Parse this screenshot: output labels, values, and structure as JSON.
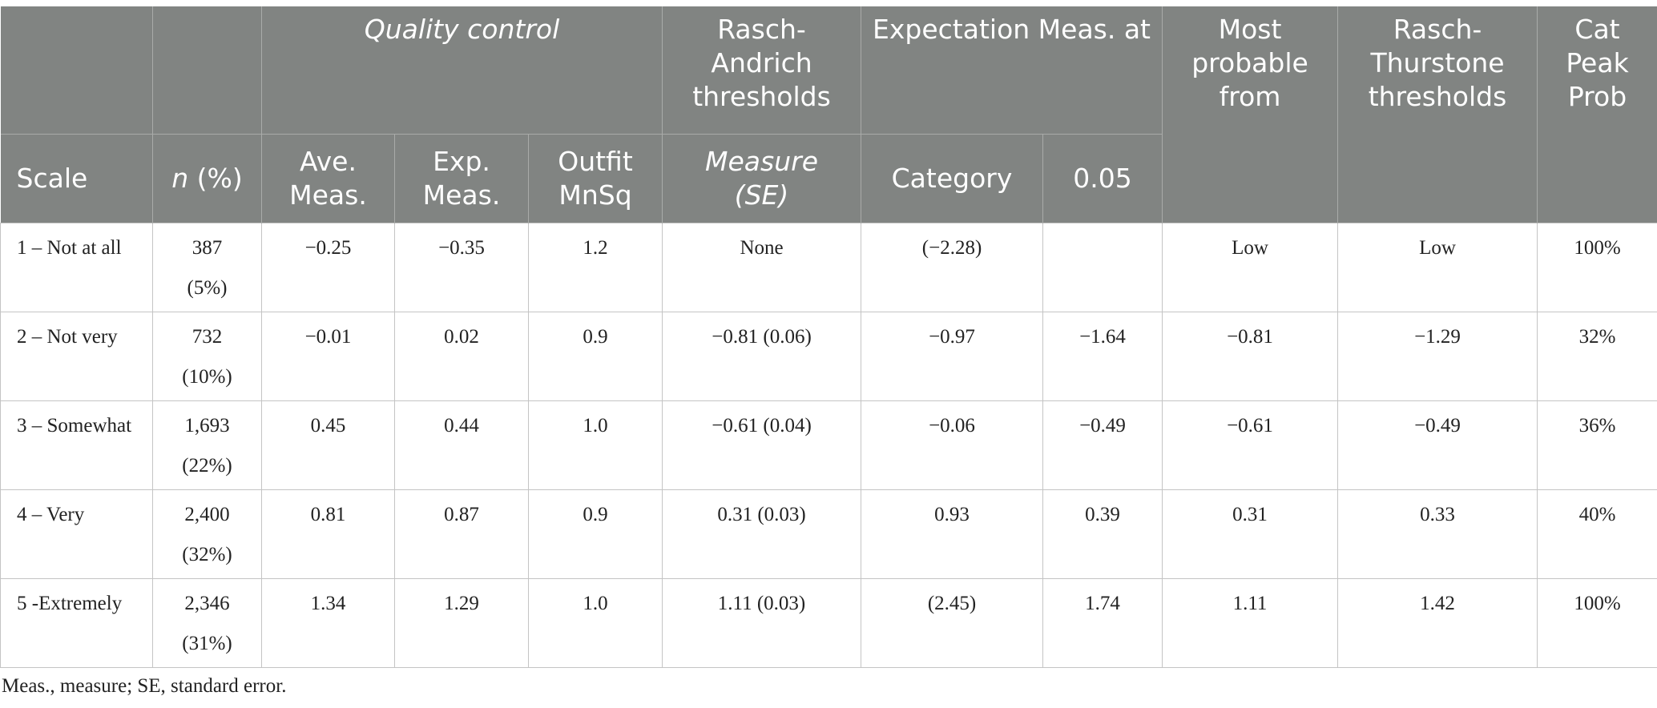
{
  "header": {
    "quality_control": "Quality control",
    "rasch_andrich": "Rasch-Andrich thresholds",
    "expectation": "Expectation Meas. at",
    "most_probable": "Most probable from",
    "rasch_thurstone": "Rasch-Thurstone thresholds",
    "cat_peak": "Cat Peak Prob",
    "scale": "Scale",
    "n_italic": "n",
    "n_pct": " (%)",
    "ave_meas": "Ave. Meas.",
    "exp_meas": "Exp. Meas.",
    "outfit": "Outfit MnSq",
    "measure": "Measure",
    "se": "(SE)",
    "category": "Category",
    "p05": "0.05"
  },
  "rows": [
    {
      "scale": "1 – Not at all",
      "n": "387",
      "pct": "(5%)",
      "ave": "−0.25",
      "exp": "−0.35",
      "outfit": "1.2",
      "measure": "None",
      "category": "(−2.28)",
      "p05": "",
      "most": "Low",
      "thurstone": "Low",
      "peak": "100%"
    },
    {
      "scale": "2 – Not very",
      "n": "732",
      "pct": "(10%)",
      "ave": "−0.01",
      "exp": "0.02",
      "outfit": "0.9",
      "measure": "−0.81 (0.06)",
      "category": "−0.97",
      "p05": "−1.64",
      "most": "−0.81",
      "thurstone": "−1.29",
      "peak": "32%"
    },
    {
      "scale": "3 – Somewhat",
      "n": "1,693",
      "pct": "(22%)",
      "ave": "0.45",
      "exp": "0.44",
      "outfit": "1.0",
      "measure": "−0.61 (0.04)",
      "category": "−0.06",
      "p05": "−0.49",
      "most": "−0.61",
      "thurstone": "−0.49",
      "peak": "36%"
    },
    {
      "scale": "4 – Very",
      "n": "2,400",
      "pct": "(32%)",
      "ave": "0.81",
      "exp": "0.87",
      "outfit": "0.9",
      "measure": "0.31 (0.03)",
      "category": "0.93",
      "p05": "0.39",
      "most": "0.31",
      "thurstone": "0.33",
      "peak": "40%"
    },
    {
      "scale": "5 -Extremely",
      "n": "2,346",
      "pct": "(31%)",
      "ave": "1.34",
      "exp": "1.29",
      "outfit": "1.0",
      "measure": "1.11 (0.03)",
      "category": "(2.45)",
      "p05": "1.74",
      "most": "1.11",
      "thurstone": "1.42",
      "peak": "100%"
    }
  ],
  "footnote": "Meas., measure; SE, standard error."
}
